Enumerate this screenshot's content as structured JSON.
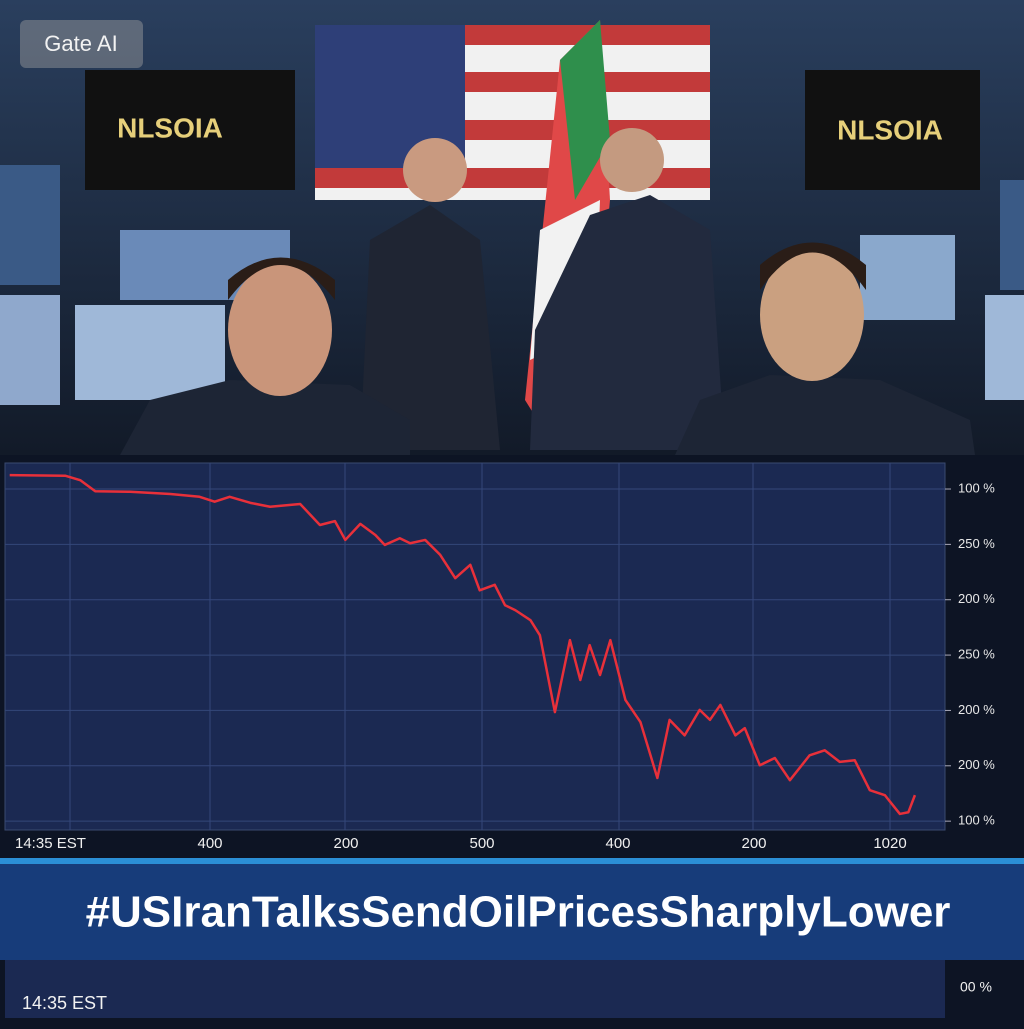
{
  "badge": "Gate AI",
  "photo": {
    "screen_labels": [
      "NLSOIA",
      "NLSOIA"
    ]
  },
  "chart_data": {
    "type": "line",
    "x": [
      0.5,
      6.4,
      8.0,
      9.6,
      13.3,
      17.6,
      20.7,
      22.3,
      23.9,
      26.1,
      28.2,
      31.4,
      33.5,
      35.1,
      36.2,
      37.8,
      39.4,
      40.4,
      42.0,
      43.1,
      44.7,
      46.3,
      47.9,
      49.5,
      50.5,
      52.1,
      53.2,
      54.3,
      55.9,
      56.9,
      58.5,
      60.1,
      61.2,
      62.2,
      63.3,
      64.4,
      66.0,
      67.6,
      69.4,
      70.7,
      72.3,
      73.9,
      75.0,
      76.1,
      77.7,
      78.7,
      80.3,
      81.9,
      83.5,
      85.6,
      87.2,
      88.8,
      90.4,
      92.0,
      93.6,
      95.2,
      96.1,
      96.8
    ],
    "series": [
      {
        "color": "#e8303a",
        "values": [
          7.25,
          7.24,
          7.16,
          6.96,
          6.95,
          6.91,
          6.86,
          6.77,
          6.86,
          6.75,
          6.68,
          6.73,
          6.35,
          6.42,
          6.08,
          6.37,
          6.17,
          5.99,
          6.11,
          6.02,
          6.08,
          5.81,
          5.39,
          5.63,
          5.17,
          5.27,
          4.9,
          4.81,
          4.63,
          4.36,
          2.97,
          4.27,
          3.55,
          4.18,
          3.64,
          4.27,
          3.19,
          2.79,
          1.78,
          2.83,
          2.55,
          3.01,
          2.83,
          3.1,
          2.55,
          2.68,
          2.01,
          2.14,
          1.74,
          2.19,
          2.28,
          2.07,
          2.1,
          1.56,
          1.47,
          1.13,
          1.16,
          1.47
        ]
      }
    ],
    "xlim": [
      0,
      100
    ],
    "ylim": [
      0.84,
      7.47
    ],
    "yticks": [
      {
        "value": 7,
        "label": "100 %"
      },
      {
        "value": 6,
        "label": "250 %"
      },
      {
        "value": 5,
        "label": "200 %"
      },
      {
        "value": 4,
        "label": "250 %"
      },
      {
        "value": 3,
        "label": "200 %"
      },
      {
        "value": 2,
        "label": "200 %"
      },
      {
        "value": 1,
        "label": "100 %"
      }
    ],
    "x_labels": [
      "14:35 EST",
      "400",
      "200",
      "500",
      "400",
      "200",
      "1020"
    ],
    "grid": true
  },
  "headline": "#USIranTalksSendOilPricesSharplyLower",
  "footer": {
    "time": "14:35 EST",
    "value": "00 %"
  }
}
